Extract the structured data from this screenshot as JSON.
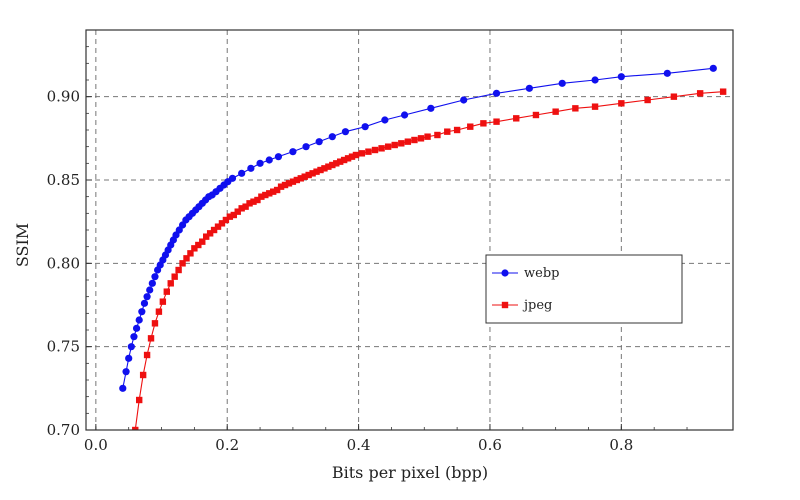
{
  "chart_data": {
    "type": "line",
    "title": "",
    "xlabel": "Bits per pixel (bpp)",
    "ylabel": "SSIM",
    "xlim": [
      -0.015,
      0.97
    ],
    "ylim": [
      0.7,
      0.94
    ],
    "xticks": [
      0.0,
      0.2,
      0.4,
      0.6,
      0.8
    ],
    "yticks": [
      0.7,
      0.75,
      0.8,
      0.85,
      0.9
    ],
    "xtick_labels": [
      "0.0",
      "0.2",
      "0.4",
      "0.6",
      "0.8"
    ],
    "ytick_labels": [
      "0.70",
      "0.75",
      "0.80",
      "0.85",
      "0.90"
    ],
    "grid": true,
    "legend_position": "center-right",
    "series": [
      {
        "name": "webp",
        "color": "#1010ee",
        "marker": "circle",
        "x": [
          0.041,
          0.046,
          0.05,
          0.054,
          0.058,
          0.062,
          0.066,
          0.07,
          0.074,
          0.078,
          0.082,
          0.086,
          0.09,
          0.094,
          0.098,
          0.102,
          0.106,
          0.11,
          0.114,
          0.118,
          0.122,
          0.127,
          0.132,
          0.137,
          0.142,
          0.147,
          0.152,
          0.157,
          0.162,
          0.167,
          0.172,
          0.177,
          0.183,
          0.189,
          0.195,
          0.201,
          0.208,
          0.222,
          0.236,
          0.25,
          0.264,
          0.278,
          0.3,
          0.32,
          0.34,
          0.36,
          0.38,
          0.41,
          0.44,
          0.47,
          0.51,
          0.56,
          0.61,
          0.66,
          0.71,
          0.76,
          0.8,
          0.87,
          0.94
        ],
        "y": [
          0.725,
          0.735,
          0.743,
          0.75,
          0.756,
          0.761,
          0.766,
          0.771,
          0.776,
          0.78,
          0.784,
          0.788,
          0.792,
          0.796,
          0.799,
          0.802,
          0.805,
          0.808,
          0.811,
          0.814,
          0.817,
          0.82,
          0.823,
          0.826,
          0.828,
          0.83,
          0.832,
          0.834,
          0.836,
          0.838,
          0.84,
          0.841,
          0.843,
          0.845,
          0.847,
          0.849,
          0.851,
          0.854,
          0.857,
          0.86,
          0.862,
          0.864,
          0.867,
          0.87,
          0.873,
          0.876,
          0.879,
          0.882,
          0.886,
          0.889,
          0.893,
          0.898,
          0.902,
          0.905,
          0.908,
          0.91,
          0.912,
          0.914,
          0.917
        ]
      },
      {
        "name": "jpeg",
        "color": "#ee1010",
        "marker": "square",
        "x": [
          0.06,
          0.066,
          0.072,
          0.078,
          0.084,
          0.09,
          0.096,
          0.102,
          0.108,
          0.114,
          0.12,
          0.126,
          0.132,
          0.138,
          0.144,
          0.15,
          0.156,
          0.162,
          0.168,
          0.174,
          0.18,
          0.186,
          0.192,
          0.198,
          0.204,
          0.21,
          0.216,
          0.222,
          0.228,
          0.234,
          0.24,
          0.246,
          0.252,
          0.258,
          0.264,
          0.27,
          0.276,
          0.282,
          0.288,
          0.294,
          0.3,
          0.306,
          0.312,
          0.318,
          0.324,
          0.33,
          0.336,
          0.342,
          0.348,
          0.354,
          0.36,
          0.366,
          0.372,
          0.378,
          0.384,
          0.39,
          0.396,
          0.405,
          0.415,
          0.425,
          0.435,
          0.445,
          0.455,
          0.465,
          0.475,
          0.485,
          0.495,
          0.505,
          0.52,
          0.535,
          0.55,
          0.57,
          0.59,
          0.61,
          0.64,
          0.67,
          0.7,
          0.73,
          0.76,
          0.8,
          0.84,
          0.88,
          0.92,
          0.955
        ],
        "y": [
          0.7,
          0.718,
          0.733,
          0.745,
          0.755,
          0.764,
          0.771,
          0.777,
          0.783,
          0.788,
          0.792,
          0.796,
          0.8,
          0.803,
          0.806,
          0.809,
          0.811,
          0.813,
          0.816,
          0.818,
          0.82,
          0.822,
          0.824,
          0.826,
          0.828,
          0.829,
          0.831,
          0.833,
          0.834,
          0.836,
          0.837,
          0.838,
          0.84,
          0.841,
          0.842,
          0.843,
          0.844,
          0.846,
          0.847,
          0.848,
          0.849,
          0.85,
          0.851,
          0.852,
          0.853,
          0.854,
          0.855,
          0.856,
          0.857,
          0.858,
          0.859,
          0.86,
          0.861,
          0.862,
          0.863,
          0.864,
          0.865,
          0.866,
          0.867,
          0.868,
          0.869,
          0.87,
          0.871,
          0.872,
          0.873,
          0.874,
          0.875,
          0.876,
          0.877,
          0.879,
          0.88,
          0.882,
          0.884,
          0.885,
          0.887,
          0.889,
          0.891,
          0.893,
          0.894,
          0.896,
          0.898,
          0.9,
          0.902,
          0.903
        ]
      }
    ]
  }
}
